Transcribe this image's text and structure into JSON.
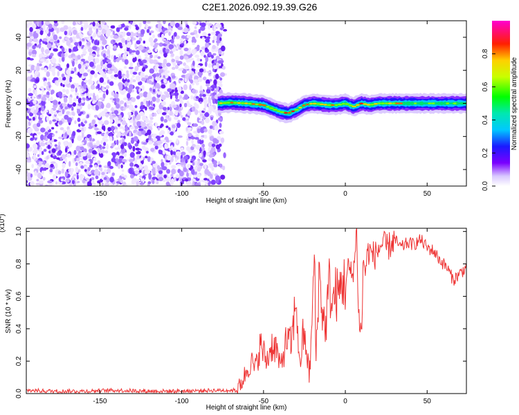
{
  "title": "C2E1.2026.092.19.39.G26",
  "chart_data": [
    {
      "type": "heatmap",
      "title": "C2E1.2026.092.19.39.G26",
      "xlabel": "Height of straight line (km)",
      "ylabel": "Frequency (Hz)",
      "xlim": [
        -195,
        74
      ],
      "ylim": [
        -50,
        50
      ],
      "x_ticks": [
        -150,
        -100,
        -50,
        0,
        50
      ],
      "x_tick_labels": [
        "-150",
        "-100",
        "-50",
        "0",
        "50"
      ],
      "y_ticks": [
        -40,
        -20,
        0,
        20,
        40
      ],
      "y_tick_labels": [
        "-40",
        "-20",
        "0",
        "20",
        "40"
      ],
      "noise_region_x": [
        -195,
        -75
      ],
      "signal_region_x": [
        -78,
        74
      ],
      "signal_center_frequency_hz": [
        [
          -78,
          0
        ],
        [
          -70,
          0.5
        ],
        [
          -60,
          0
        ],
        [
          -50,
          -1
        ],
        [
          -45,
          -3
        ],
        [
          -40,
          -5
        ],
        [
          -35,
          -6
        ],
        [
          -30,
          -4
        ],
        [
          -25,
          -1
        ],
        [
          -20,
          0
        ],
        [
          -10,
          -1
        ],
        [
          -5,
          -1
        ],
        [
          0,
          0
        ],
        [
          5,
          -2
        ],
        [
          10,
          0
        ],
        [
          15,
          -1
        ],
        [
          20,
          0
        ],
        [
          40,
          0
        ],
        [
          74,
          0
        ]
      ],
      "colorbar": {
        "label": "Normalized spectral amplitude",
        "range": [
          0,
          1
        ],
        "ticks": [
          0.0,
          0.2,
          0.4,
          0.6,
          0.8
        ],
        "tick_labels": [
          "0.0",
          "0.2",
          "0.4",
          "0.6",
          "0.8"
        ]
      }
    },
    {
      "type": "line",
      "title": "",
      "xlabel": "Height of straight line (km)",
      "ylabel": "SNR (10 * v/v)",
      "scale_label": "(x10",
      "scale_exponent": "4",
      "xlim": [
        -195,
        74
      ],
      "ylim": [
        0,
        1.02
      ],
      "x_ticks": [
        -150,
        -100,
        -50,
        0,
        50
      ],
      "x_tick_labels": [
        "-150",
        "-100",
        "-50",
        "0",
        "50"
      ],
      "y_ticks": [
        0.0,
        0.2,
        0.4,
        0.6,
        0.8,
        1.0
      ],
      "y_tick_labels": [
        "0.0",
        "0.2",
        "0.4",
        "0.6",
        "0.8",
        "1.0"
      ],
      "series": [
        {
          "name": "SNR",
          "color": "#ee3333",
          "x": [
            -195,
            -180,
            -160,
            -140,
            -120,
            -100,
            -80,
            -66,
            -62,
            -58,
            -55,
            -52,
            -48,
            -45,
            -42,
            -40,
            -36,
            -33,
            -30,
            -28,
            -26,
            -24,
            -22,
            -20,
            -19,
            -18,
            -16,
            -14,
            -12,
            -10,
            -8,
            -6,
            -4,
            -2,
            0,
            2,
            4,
            6,
            7,
            8,
            10,
            11,
            12,
            14,
            18,
            22,
            26,
            30,
            34,
            38,
            42,
            46,
            50,
            54,
            58,
            62,
            66,
            70,
            74
          ],
          "values": [
            0.02,
            0.015,
            0.015,
            0.02,
            0.015,
            0.015,
            0.02,
            0.02,
            0.1,
            0.2,
            0.15,
            0.3,
            0.2,
            0.3,
            0.28,
            0.15,
            0.33,
            0.3,
            0.6,
            0.15,
            0.35,
            0.3,
            0.1,
            0.5,
            0.93,
            0.2,
            0.75,
            0.5,
            0.4,
            0.68,
            0.55,
            0.62,
            0.6,
            0.7,
            0.67,
            0.78,
            0.72,
            0.85,
            1.02,
            0.5,
            0.35,
            0.85,
            0.75,
            0.88,
            0.85,
            0.92,
            0.9,
            0.95,
            0.9,
            0.93,
            0.92,
            0.95,
            0.9,
            0.88,
            0.82,
            0.78,
            0.7,
            0.74,
            0.78
          ]
        }
      ]
    }
  ]
}
